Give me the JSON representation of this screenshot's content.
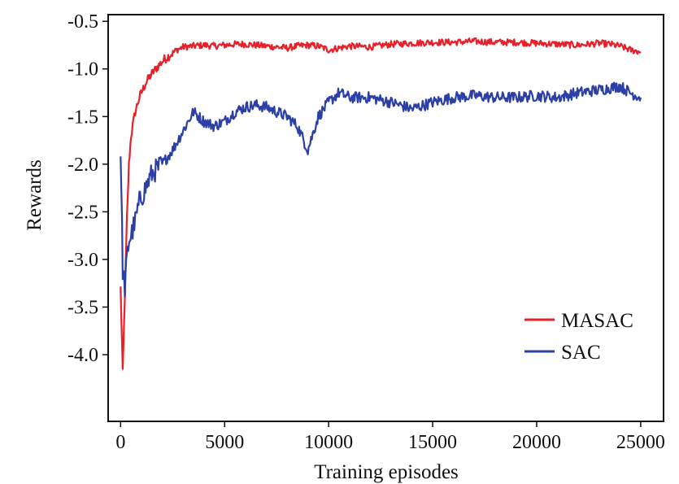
{
  "chart_data": {
    "type": "line",
    "title": "",
    "xlabel": "Training episodes",
    "ylabel": "Rewards",
    "xlim": [
      -600,
      26100
    ],
    "ylim": [
      -4.7,
      -0.43
    ],
    "x_ticks": [
      0,
      5000,
      10000,
      15000,
      20000,
      25000
    ],
    "x_tick_labels": [
      "0",
      "5000",
      "10000",
      "15000",
      "20000",
      "25000"
    ],
    "y_ticks": [
      -0.5,
      -1.0,
      -1.5,
      -2.0,
      -2.5,
      -3.0,
      -3.5,
      -4.0
    ],
    "y_tick_labels": [
      "-0.5",
      "-1.0",
      "-1.5",
      "-2.0",
      "-2.5",
      "-3.0",
      "-3.5",
      "-4.0"
    ],
    "grid": false,
    "legend_position": "bottom-right",
    "series": [
      {
        "name": "MASAC",
        "color": "#e8202a",
        "x": [
          0,
          100,
          200,
          300,
          400,
          500,
          700,
          900,
          1200,
          1500,
          1800,
          2100,
          2400,
          2700,
          3000,
          3500,
          4000,
          4500,
          5000,
          5500,
          6000,
          6500,
          7000,
          7500,
          8000,
          8500,
          9000,
          9500,
          10000,
          11000,
          12000,
          13000,
          14000,
          15000,
          16000,
          17000,
          18000,
          19000,
          20000,
          21000,
          22000,
          23000,
          23500,
          24000,
          24500,
          25000
        ],
        "values": [
          -3.3,
          -4.2,
          -3.4,
          -2.6,
          -2.0,
          -1.7,
          -1.45,
          -1.3,
          -1.15,
          -1.05,
          -0.97,
          -0.9,
          -0.85,
          -0.8,
          -0.77,
          -0.76,
          -0.75,
          -0.76,
          -0.75,
          -0.74,
          -0.74,
          -0.75,
          -0.76,
          -0.77,
          -0.78,
          -0.76,
          -0.75,
          -0.76,
          -0.8,
          -0.76,
          -0.77,
          -0.74,
          -0.73,
          -0.72,
          -0.72,
          -0.71,
          -0.72,
          -0.72,
          -0.73,
          -0.74,
          -0.75,
          -0.73,
          -0.74,
          -0.76,
          -0.8,
          -0.82
        ]
      },
      {
        "name": "SAC",
        "color": "#2b3fa5",
        "x": [
          0,
          100,
          200,
          300,
          400,
          500,
          700,
          900,
          1200,
          1500,
          2000,
          2500,
          3000,
          3500,
          4000,
          4500,
          5000,
          5500,
          6000,
          6500,
          7000,
          7500,
          8000,
          8500,
          9000,
          9500,
          10000,
          10500,
          11000,
          12000,
          13000,
          14000,
          15000,
          16000,
          17000,
          18000,
          19000,
          20000,
          21000,
          22000,
          23000,
          24000,
          24500,
          25000
        ],
        "values": [
          -1.85,
          -3.1,
          -3.3,
          -3.0,
          -2.8,
          -2.75,
          -2.6,
          -2.4,
          -2.25,
          -2.1,
          -2.0,
          -1.85,
          -1.65,
          -1.45,
          -1.55,
          -1.6,
          -1.55,
          -1.45,
          -1.4,
          -1.38,
          -1.4,
          -1.45,
          -1.5,
          -1.6,
          -1.85,
          -1.5,
          -1.35,
          -1.25,
          -1.3,
          -1.3,
          -1.35,
          -1.42,
          -1.35,
          -1.3,
          -1.28,
          -1.3,
          -1.3,
          -1.28,
          -1.3,
          -1.25,
          -1.22,
          -1.18,
          -1.25,
          -1.3
        ]
      }
    ]
  }
}
